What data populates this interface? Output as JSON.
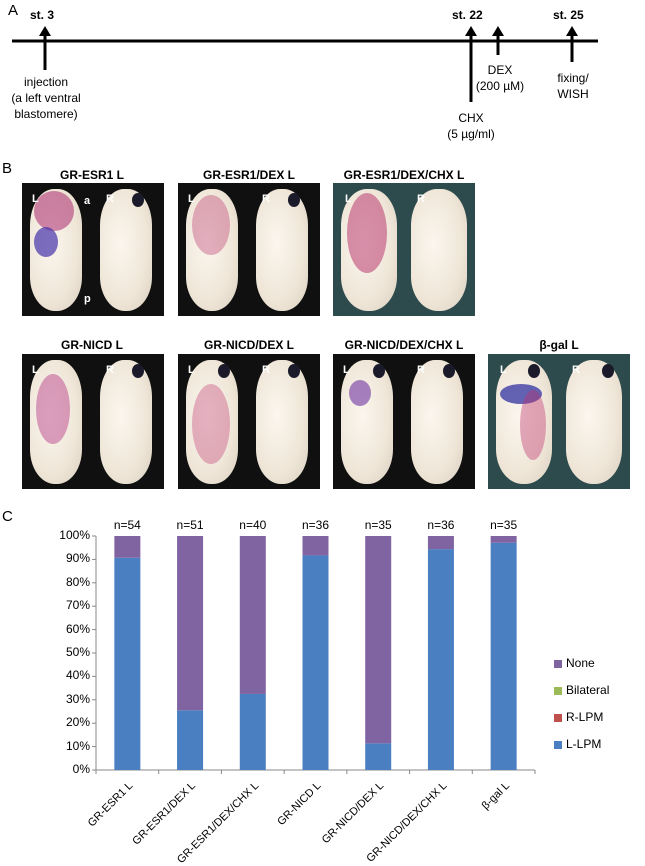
{
  "panel_a": {
    "letter": "A",
    "stages": [
      "st. 3",
      "st. 22",
      "st. 25"
    ],
    "injection": [
      "injection",
      "(a left ventral",
      "blastomere)"
    ],
    "chx": [
      "CHX",
      "(5 µg/ml)"
    ],
    "dex": [
      "DEX",
      "(200 µM)"
    ],
    "fix": [
      "fixing/",
      "WISH"
    ]
  },
  "panel_b": {
    "letter": "B",
    "tiles": [
      {
        "label": "GR-ESR1 L",
        "left": "L",
        "right": "R",
        "a": "a",
        "p": "p"
      },
      {
        "label": "GR-ESR1/DEX L",
        "left": "L",
        "right": "R"
      },
      {
        "label": "GR-ESR1/DEX/CHX L",
        "left": "L",
        "right": "R"
      },
      {
        "label": "GR-NICD L",
        "left": "L",
        "right": "R"
      },
      {
        "label": "GR-NICD/DEX L",
        "left": "L",
        "right": "R"
      },
      {
        "label": "GR-NICD/DEX/CHX L",
        "left": "L",
        "right": "R"
      },
      {
        "label": "β-gal  L",
        "left": "L",
        "right": "R"
      }
    ]
  },
  "panel_c": {
    "letter": "C"
  },
  "chart_data": {
    "type": "bar",
    "stacked": true,
    "categories": [
      "GR-ESR1 L",
      "GR-ESR1/DEX L",
      "GR-ESR1/DEX/CHX L",
      "GR-NICD L",
      "GR-NICD/DEX L",
      "GR-NICD/DEX/CHX L",
      "β-gal L"
    ],
    "n_labels": [
      "n=54",
      "n=51",
      "n=40",
      "n=36",
      "n=35",
      "n=36",
      "n=35"
    ],
    "series": [
      {
        "name": "L-LPM",
        "color": "#4a7fc1",
        "values": [
          90.7,
          25.5,
          32.5,
          91.7,
          11.4,
          94.4,
          97.1
        ]
      },
      {
        "name": "R-LPM",
        "color": "#c0504d",
        "values": [
          0,
          0,
          0,
          0,
          0,
          0,
          0
        ]
      },
      {
        "name": "Bilateral",
        "color": "#9bbb59",
        "values": [
          0,
          0,
          0,
          0,
          0,
          0,
          0
        ]
      },
      {
        "name": "None",
        "color": "#8064a2",
        "values": [
          9.3,
          74.5,
          67.5,
          8.3,
          88.6,
          5.6,
          2.9
        ]
      }
    ],
    "legend_order": [
      "None",
      "Bilateral",
      "R-LPM",
      "L-LPM"
    ],
    "legend_position": "right",
    "y_ticks": [
      "0%",
      "10%",
      "20%",
      "30%",
      "40%",
      "50%",
      "60%",
      "70%",
      "80%",
      "90%",
      "100%"
    ],
    "ylim": [
      0,
      100
    ],
    "grid": false
  }
}
